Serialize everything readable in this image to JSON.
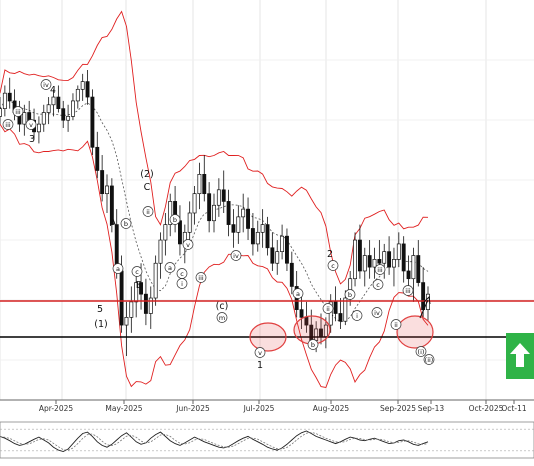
{
  "chart_data": {
    "type": "candlestick",
    "x_labels": [
      "Apr-2025",
      "May-2025",
      "Jun-2025",
      "Jul-2025",
      "Aug-2025",
      "Sep-2025",
      "Sep-13",
      "Oct-2025",
      "Oct-11"
    ],
    "grid": true,
    "resistance_level": {
      "color": "#d42020"
    },
    "support_level": {
      "color": "#000000"
    },
    "bollinger_band_color": "#e02020",
    "moving_average_style": "dashed",
    "candles": [
      [
        100,
        105,
        98,
        102
      ],
      [
        102,
        108,
        100,
        106
      ],
      [
        106,
        110,
        102,
        104
      ],
      [
        104,
        107,
        99,
        101
      ],
      [
        101,
        104,
        96,
        98
      ],
      [
        98,
        103,
        95,
        101
      ],
      [
        101,
        104,
        97,
        99
      ],
      [
        99,
        102,
        94,
        96
      ],
      [
        96,
        100,
        93,
        98
      ],
      [
        98,
        103,
        96,
        101
      ],
      [
        101,
        105,
        98,
        103
      ],
      [
        103,
        107,
        100,
        105
      ],
      [
        105,
        108,
        101,
        102
      ],
      [
        102,
        104,
        97,
        99
      ],
      [
        99,
        103,
        96,
        100
      ],
      [
        100,
        106,
        99,
        104
      ],
      [
        104,
        108,
        102,
        107
      ],
      [
        107,
        111,
        104,
        109
      ],
      [
        109,
        112,
        103,
        105
      ],
      [
        105,
        107,
        90,
        92
      ],
      [
        92,
        96,
        84,
        86
      ],
      [
        86,
        90,
        78,
        80
      ],
      [
        80,
        85,
        75,
        82
      ],
      [
        82,
        84,
        70,
        72
      ],
      [
        72,
        76,
        58,
        60
      ],
      [
        60,
        64,
        44,
        46
      ],
      [
        46,
        52,
        38,
        48
      ],
      [
        48,
        56,
        44,
        52
      ],
      [
        52,
        60,
        48,
        57
      ],
      [
        57,
        62,
        50,
        54
      ],
      [
        54,
        58,
        46,
        49
      ],
      [
        49,
        56,
        45,
        53
      ],
      [
        53,
        64,
        51,
        62
      ],
      [
        62,
        70,
        58,
        68
      ],
      [
        68,
        75,
        64,
        72
      ],
      [
        72,
        80,
        69,
        78
      ],
      [
        78,
        82,
        70,
        73
      ],
      [
        73,
        77,
        64,
        67
      ],
      [
        67,
        72,
        62,
        70
      ],
      [
        70,
        78,
        66,
        75
      ],
      [
        75,
        82,
        72,
        80
      ],
      [
        80,
        88,
        76,
        85
      ],
      [
        85,
        90,
        78,
        80
      ],
      [
        80,
        83,
        70,
        73
      ],
      [
        73,
        80,
        70,
        77
      ],
      [
        77,
        84,
        74,
        81
      ],
      [
        81,
        86,
        75,
        78
      ],
      [
        78,
        81,
        69,
        72
      ],
      [
        72,
        76,
        66,
        70
      ],
      [
        70,
        77,
        67,
        74
      ],
      [
        74,
        80,
        70,
        76
      ],
      [
        76,
        79,
        68,
        71
      ],
      [
        71,
        75,
        64,
        67
      ],
      [
        67,
        73,
        65,
        70
      ],
      [
        70,
        76,
        66,
        72
      ],
      [
        72,
        74,
        64,
        66
      ],
      [
        66,
        70,
        60,
        62
      ],
      [
        62,
        68,
        59,
        65
      ],
      [
        65,
        72,
        63,
        69
      ],
      [
        69,
        71,
        60,
        62
      ],
      [
        62,
        65,
        54,
        56
      ],
      [
        56,
        60,
        48,
        50
      ],
      [
        50,
        54,
        45,
        48
      ],
      [
        48,
        52,
        44,
        46
      ],
      [
        46,
        50,
        40,
        42
      ],
      [
        42,
        47,
        39,
        45
      ],
      [
        45,
        49,
        41,
        43
      ],
      [
        43,
        48,
        40,
        46
      ],
      [
        46,
        54,
        44,
        52
      ],
      [
        52,
        56,
        47,
        49
      ],
      [
        49,
        53,
        45,
        47
      ],
      [
        47,
        55,
        46,
        53
      ],
      [
        53,
        60,
        51,
        58
      ],
      [
        58,
        70,
        56,
        68
      ],
      [
        68,
        72,
        58,
        60
      ],
      [
        60,
        66,
        56,
        64
      ],
      [
        64,
        68,
        58,
        61
      ],
      [
        61,
        66,
        58,
        63
      ],
      [
        63,
        68,
        59,
        62
      ],
      [
        62,
        67,
        58,
        65
      ],
      [
        65,
        69,
        59,
        61
      ],
      [
        61,
        66,
        56,
        63
      ],
      [
        63,
        70,
        61,
        67
      ],
      [
        67,
        69,
        57,
        60
      ],
      [
        60,
        64,
        54,
        58
      ],
      [
        58,
        66,
        52,
        64
      ],
      [
        64,
        68,
        56,
        57
      ],
      [
        57,
        61,
        48,
        50
      ],
      [
        50,
        56,
        47,
        54
      ]
    ],
    "oscillator": [
      60,
      55,
      48,
      40,
      35,
      38,
      45,
      52,
      58,
      50,
      42,
      30,
      22,
      18,
      25,
      40,
      55,
      68,
      72,
      60,
      45,
      35,
      30,
      38,
      50,
      62,
      70,
      58,
      45,
      38,
      42,
      55,
      65,
      72,
      60,
      48,
      40,
      35,
      42,
      50,
      58,
      52,
      45,
      40,
      35,
      30,
      28,
      32,
      40,
      48,
      55,
      60,
      52,
      45,
      38,
      30,
      25,
      22,
      28,
      38,
      50,
      62,
      70,
      75,
      68,
      60,
      55,
      50,
      45,
      40,
      45,
      52,
      58,
      55,
      50,
      48,
      52,
      55,
      50,
      45,
      40,
      42,
      48,
      50,
      45,
      38,
      35,
      40,
      45
    ],
    "wave_labels": [
      "iii",
      "v",
      "3",
      "4",
      "iv",
      "A",
      "b",
      "c",
      "B",
      "a",
      "5",
      "(1)",
      "(2)",
      "C",
      "ii",
      "b",
      "a",
      "c",
      "i",
      "iii",
      "v",
      "iv",
      "(c)",
      "m",
      "a",
      "b",
      "v",
      "1",
      "2",
      "c",
      "ii",
      "i",
      "b",
      "iii",
      "c",
      "iv",
      "iii",
      "ii",
      "(i)",
      "(ii)",
      "iii"
    ]
  }
}
